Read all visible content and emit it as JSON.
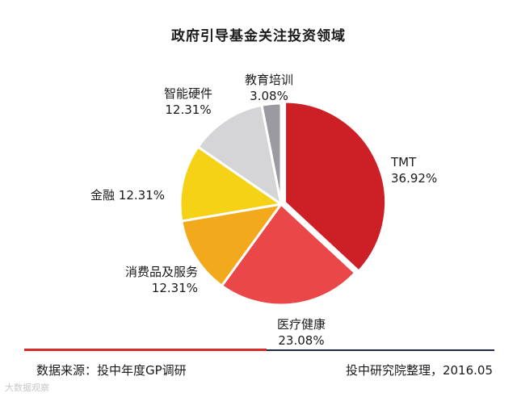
{
  "chart_data": {
    "type": "pie",
    "title": "政府引导基金关注投资领域",
    "start_angle_deg": 0,
    "direction": "clockwise",
    "slices": [
      {
        "name": "TMT",
        "value": 36.92,
        "label": "36.92%",
        "color": "#cc1f26",
        "name_first_line": "TMT"
      },
      {
        "name": "医疗健康",
        "value": 23.08,
        "label": "23.08%",
        "color": "#ea4848"
      },
      {
        "name": "消费品及服务",
        "value": 12.31,
        "label": "12.31%",
        "color": "#f2aa1c"
      },
      {
        "name": "金融",
        "value": 12.31,
        "label": "12.31%",
        "color": "#f5d216"
      },
      {
        "name": "智能硬件",
        "value": 12.31,
        "label": "12.31%",
        "color": "#d5d5d7"
      },
      {
        "name": "教育培训",
        "value": 3.08,
        "label": "3.08%",
        "color": "#9a9aa0"
      }
    ]
  },
  "footer": {
    "source": "数据来源：投中年度GP调研",
    "credit": "投中研究院整理，2016.05"
  },
  "watermark": "大数据观察"
}
